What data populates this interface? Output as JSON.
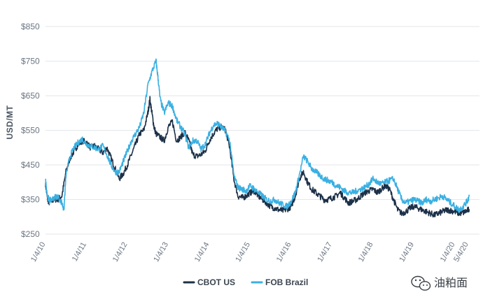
{
  "chart_data": {
    "type": "line",
    "title": "",
    "xlabel": "",
    "ylabel": "USD/MT",
    "ylim": [
      250,
      850
    ],
    "yticks": [
      250,
      350,
      450,
      550,
      650,
      750,
      850
    ],
    "ytick_labels": [
      "$250",
      "$350",
      "$450",
      "$550",
      "$650",
      "$750",
      "$850"
    ],
    "xlim": [
      2010.0,
      2020.6
    ],
    "xticks": [
      {
        "label": "1/4/10",
        "x": 2010.0
      },
      {
        "label": "1/4/11",
        "x": 2011.0
      },
      {
        "label": "1/4/12",
        "x": 2012.0
      },
      {
        "label": "1/4/13",
        "x": 2013.0
      },
      {
        "label": "1/4/14",
        "x": 2014.0
      },
      {
        "label": "1/4/15",
        "x": 2015.0
      },
      {
        "label": "1/4/16",
        "x": 2016.0
      },
      {
        "label": "1/4/17",
        "x": 2017.0
      },
      {
        "label": "1/4/18",
        "x": 2018.0
      },
      {
        "label": "1/4/19",
        "x": 2019.0
      },
      {
        "label": "1/4/20",
        "x": 2020.0
      },
      {
        "label": "5/4/20",
        "x": 2020.33
      }
    ],
    "grid": true,
    "legend_position": "bottom-center",
    "series": [
      {
        "name": "CBOT US",
        "color": "#1c3048",
        "x": [
          2010.0,
          2010.05,
          2010.1,
          2010.2,
          2010.3,
          2010.4,
          2010.5,
          2010.6,
          2010.7,
          2010.8,
          2010.9,
          2011.0,
          2011.1,
          2011.2,
          2011.3,
          2011.4,
          2011.5,
          2011.6,
          2011.7,
          2011.8,
          2011.9,
          2012.0,
          2012.1,
          2012.2,
          2012.3,
          2012.4,
          2012.5,
          2012.55,
          2012.6,
          2012.65,
          2012.7,
          2012.8,
          2012.9,
          2013.0,
          2013.1,
          2013.2,
          2013.3,
          2013.4,
          2013.5,
          2013.6,
          2013.7,
          2013.8,
          2013.9,
          2014.0,
          2014.1,
          2014.2,
          2014.3,
          2014.4,
          2014.5,
          2014.6,
          2014.7,
          2014.8,
          2014.9,
          2015.0,
          2015.1,
          2015.2,
          2015.3,
          2015.4,
          2015.5,
          2015.6,
          2015.7,
          2015.8,
          2015.9,
          2016.0,
          2016.1,
          2016.2,
          2016.3,
          2016.4,
          2016.5,
          2016.6,
          2016.7,
          2016.8,
          2016.9,
          2017.0,
          2017.1,
          2017.2,
          2017.3,
          2017.4,
          2017.5,
          2017.6,
          2017.7,
          2017.8,
          2017.9,
          2018.0,
          2018.1,
          2018.2,
          2018.3,
          2018.4,
          2018.5,
          2018.6,
          2018.7,
          2018.8,
          2018.9,
          2019.0,
          2019.1,
          2019.2,
          2019.3,
          2019.4,
          2019.5,
          2019.6,
          2019.7,
          2019.8,
          2019.9,
          2020.0,
          2020.1,
          2020.2,
          2020.3,
          2020.35
        ],
        "values": [
          395,
          350,
          340,
          350,
          350,
          360,
          430,
          470,
          490,
          510,
          520,
          515,
          500,
          505,
          495,
          485,
          500,
          470,
          440,
          410,
          425,
          450,
          480,
          510,
          540,
          550,
          600,
          640,
          600,
          560,
          540,
          530,
          520,
          560,
          575,
          520,
          530,
          545,
          520,
          480,
          475,
          480,
          490,
          520,
          540,
          555,
          560,
          550,
          500,
          410,
          360,
          355,
          360,
          370,
          375,
          360,
          350,
          340,
          330,
          325,
          320,
          318,
          322,
          330,
          360,
          410,
          430,
          400,
          380,
          370,
          360,
          350,
          350,
          355,
          360,
          370,
          355,
          340,
          345,
          350,
          360,
          370,
          375,
          380,
          370,
          380,
          390,
          380,
          350,
          320,
          310,
          315,
          325,
          330,
          325,
          320,
          315,
          310,
          305,
          310,
          315,
          320,
          318,
          315,
          310,
          312,
          318,
          322
        ]
      },
      {
        "name": "FOB Brazil",
        "color": "#3ab0e2",
        "x": [
          2010.0,
          2010.05,
          2010.1,
          2010.2,
          2010.3,
          2010.4,
          2010.45,
          2010.5,
          2010.6,
          2010.7,
          2010.8,
          2010.9,
          2011.0,
          2011.1,
          2011.2,
          2011.3,
          2011.4,
          2011.5,
          2011.6,
          2011.7,
          2011.8,
          2011.9,
          2012.0,
          2012.1,
          2012.2,
          2012.3,
          2012.4,
          2012.5,
          2012.6,
          2012.7,
          2012.75,
          2012.8,
          2012.9,
          2013.0,
          2013.1,
          2013.2,
          2013.3,
          2013.4,
          2013.5,
          2013.6,
          2013.7,
          2013.8,
          2013.9,
          2014.0,
          2014.1,
          2014.2,
          2014.3,
          2014.4,
          2014.5,
          2014.6,
          2014.7,
          2014.8,
          2014.9,
          2015.0,
          2015.1,
          2015.2,
          2015.3,
          2015.4,
          2015.5,
          2015.6,
          2015.7,
          2015.8,
          2015.9,
          2016.0,
          2016.1,
          2016.2,
          2016.3,
          2016.4,
          2016.5,
          2016.6,
          2016.7,
          2016.8,
          2016.9,
          2017.0,
          2017.1,
          2017.2,
          2017.3,
          2017.4,
          2017.5,
          2017.6,
          2017.7,
          2017.8,
          2017.9,
          2018.0,
          2018.1,
          2018.2,
          2018.3,
          2018.4,
          2018.5,
          2018.6,
          2018.7,
          2018.8,
          2018.9,
          2019.0,
          2019.1,
          2019.2,
          2019.3,
          2019.4,
          2019.5,
          2019.6,
          2019.7,
          2019.8,
          2019.9,
          2020.0,
          2020.1,
          2020.2,
          2020.3,
          2020.35
        ],
        "values": [
          405,
          360,
          345,
          355,
          360,
          340,
          320,
          420,
          475,
          500,
          515,
          525,
          510,
          505,
          500,
          495,
          505,
          480,
          450,
          430,
          430,
          460,
          490,
          520,
          540,
          560,
          600,
          680,
          720,
          750,
          700,
          640,
          600,
          630,
          620,
          580,
          560,
          540,
          500,
          520,
          520,
          495,
          510,
          540,
          565,
          570,
          560,
          545,
          520,
          420,
          385,
          380,
          375,
          390,
          380,
          370,
          360,
          350,
          345,
          350,
          340,
          335,
          330,
          345,
          370,
          420,
          475,
          460,
          440,
          430,
          420,
          410,
          405,
          400,
          390,
          385,
          375,
          370,
          370,
          375,
          380,
          385,
          395,
          410,
          400,
          395,
          400,
          405,
          410,
          380,
          350,
          340,
          345,
          350,
          345,
          340,
          350,
          345,
          350,
          355,
          360,
          350,
          340,
          330,
          320,
          330,
          345,
          360
        ]
      }
    ]
  },
  "watermark": {
    "text": "油粕面",
    "icon": "wechat-icon"
  }
}
